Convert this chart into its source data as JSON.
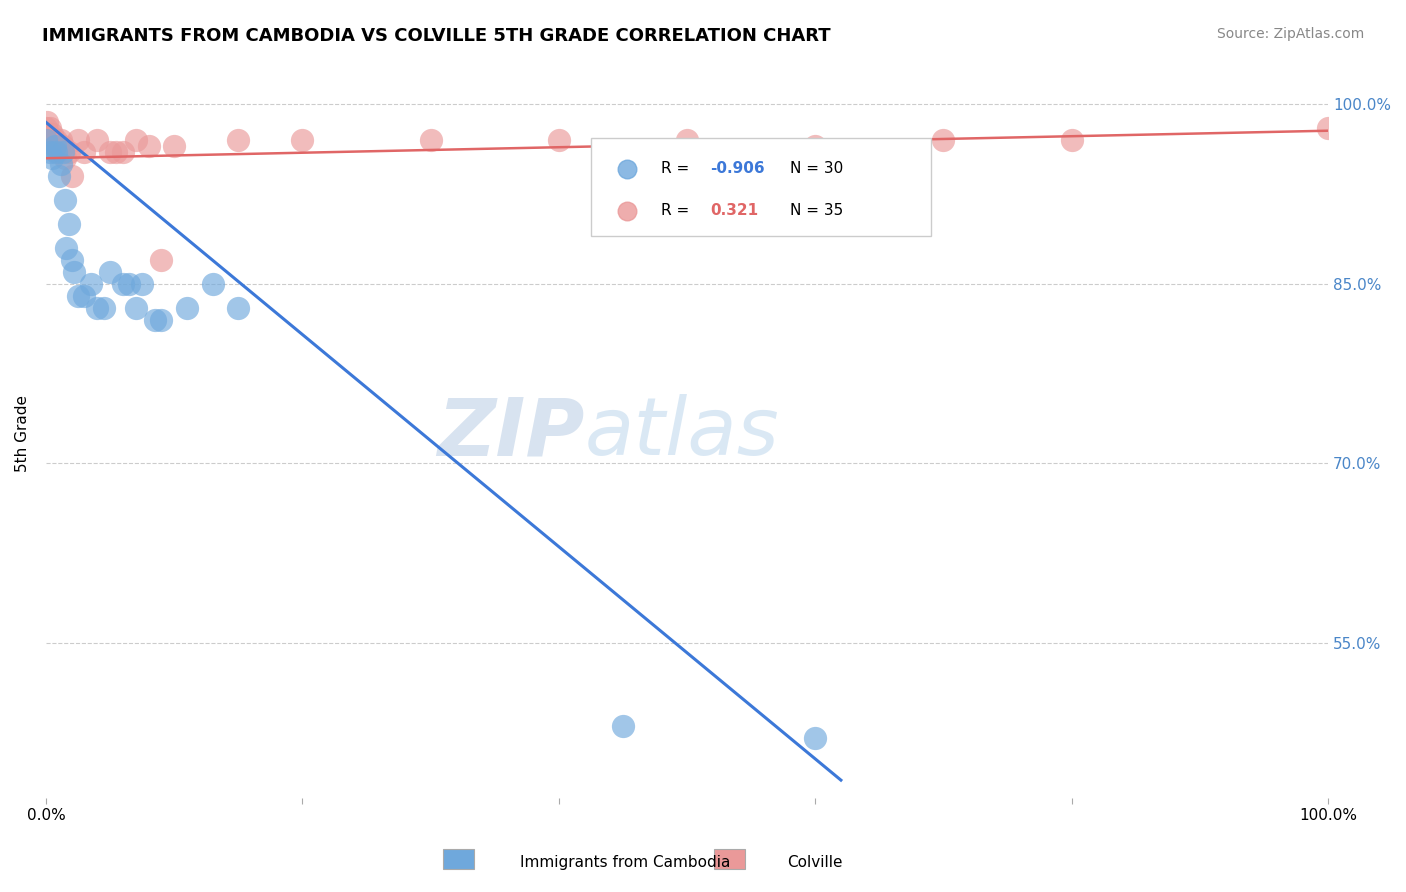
{
  "title": "IMMIGRANTS FROM CAMBODIA VS COLVILLE 5TH GRADE CORRELATION CHART",
  "source": "Source: ZipAtlas.com",
  "ylabel": "5th Grade",
  "legend_blue_R": "-0.906",
  "legend_blue_N": "30",
  "legend_pink_R": "0.321",
  "legend_pink_N": "35",
  "legend_label_blue": "Immigrants from Cambodia",
  "legend_label_pink": "Colville",
  "y_tick_labels": [
    "100.0%",
    "85.0%",
    "70.0%",
    "55.0%"
  ],
  "y_tick_values": [
    1.0,
    0.85,
    0.7,
    0.55
  ],
  "blue_color": "#6fa8dc",
  "pink_color": "#ea9999",
  "blue_line_color": "#3c78d8",
  "pink_line_color": "#e06666",
  "watermark_zip": "ZIP",
  "watermark_atlas": "atlas",
  "blue_scatter_x": [
    0.0,
    0.003,
    0.005,
    0.007,
    0.008,
    0.01,
    0.012,
    0.013,
    0.015,
    0.016,
    0.018,
    0.02,
    0.022,
    0.025,
    0.03,
    0.035,
    0.04,
    0.045,
    0.05,
    0.06,
    0.065,
    0.07,
    0.075,
    0.085,
    0.09,
    0.11,
    0.13,
    0.15,
    0.45,
    0.6
  ],
  "blue_scatter_y": [
    0.97,
    0.96,
    0.955,
    0.965,
    0.96,
    0.94,
    0.95,
    0.96,
    0.92,
    0.88,
    0.9,
    0.87,
    0.86,
    0.84,
    0.84,
    0.85,
    0.83,
    0.83,
    0.86,
    0.85,
    0.85,
    0.83,
    0.85,
    0.82,
    0.82,
    0.83,
    0.85,
    0.83,
    0.48,
    0.47
  ],
  "pink_scatter_x": [
    0.0,
    0.001,
    0.002,
    0.003,
    0.004,
    0.005,
    0.006,
    0.007,
    0.008,
    0.009,
    0.01,
    0.012,
    0.013,
    0.015,
    0.018,
    0.02,
    0.025,
    0.03,
    0.04,
    0.05,
    0.055,
    0.06,
    0.07,
    0.08,
    0.09,
    0.1,
    0.15,
    0.2,
    0.3,
    0.4,
    0.5,
    0.6,
    0.7,
    0.8,
    1.0
  ],
  "pink_scatter_y": [
    0.98,
    0.985,
    0.975,
    0.98,
    0.97,
    0.975,
    0.97,
    0.965,
    0.97,
    0.96,
    0.965,
    0.97,
    0.965,
    0.955,
    0.96,
    0.94,
    0.97,
    0.96,
    0.97,
    0.96,
    0.96,
    0.96,
    0.97,
    0.965,
    0.87,
    0.965,
    0.97,
    0.97,
    0.97,
    0.97,
    0.97,
    0.965,
    0.97,
    0.97,
    0.98
  ],
  "blue_line_x": [
    0.0,
    0.62
  ],
  "blue_line_y": [
    0.985,
    0.435
  ],
  "pink_line_x": [
    0.0,
    1.0
  ],
  "pink_line_y": [
    0.955,
    0.978
  ],
  "xlim": [
    0.0,
    1.0
  ],
  "ylim": [
    0.42,
    1.03
  ]
}
